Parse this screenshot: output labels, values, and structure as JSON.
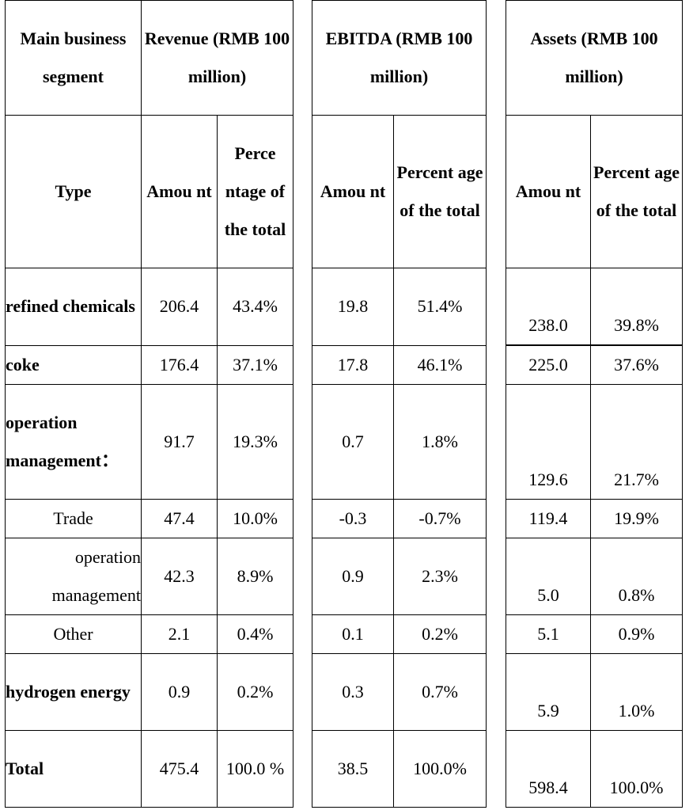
{
  "header": {
    "segment": "Main business segment",
    "revenue": "Revenue (RMB 100 million)",
    "ebitda": "EBITDA (RMB 100 million)",
    "assets": "Assets (RMB 100 million)"
  },
  "subheader": {
    "type": "Type",
    "rev_amount": "Amou nt",
    "rev_pct": "Perce ntage of the total",
    "eb_amount": "Amou nt",
    "eb_pct": "Percent age of the total",
    "as_amount": "Amou nt",
    "as_pct": "Percent age of the total"
  },
  "rows": [
    {
      "type": "refined chemicals",
      "rev_amount": "206.4",
      "rev_pct": "43.4%",
      "eb_amount": "19.8",
      "eb_pct": "51.4%",
      "as_amount": "238.0",
      "as_pct": "39.8%"
    },
    {
      "type": "coke",
      "rev_amount": "176.4",
      "rev_pct": "37.1%",
      "eb_amount": "17.8",
      "eb_pct": "46.1%",
      "as_amount": "225.0",
      "as_pct": "37.6%"
    },
    {
      "type": "operation management：",
      "rev_amount": "91.7",
      "rev_pct": "19.3%",
      "eb_amount": "0.7",
      "eb_pct": "1.8%",
      "as_amount": "129.6",
      "as_pct": "21.7%"
    },
    {
      "type": "Trade",
      "rev_amount": "47.4",
      "rev_pct": "10.0%",
      "eb_amount": "-0.3",
      "eb_pct": "-0.7%",
      "as_amount": "119.4",
      "as_pct": "19.9%"
    },
    {
      "type": "operation management",
      "rev_amount": "42.3",
      "rev_pct": "8.9%",
      "eb_amount": "0.9",
      "eb_pct": "2.3%",
      "as_amount": "5.0",
      "as_pct": "0.8%"
    },
    {
      "type": "Other",
      "rev_amount": "2.1",
      "rev_pct": "0.4%",
      "eb_amount": "0.1",
      "eb_pct": "0.2%",
      "as_amount": "5.1",
      "as_pct": "0.9%"
    },
    {
      "type": "hydrogen energy",
      "rev_amount": "0.9",
      "rev_pct": "0.2%",
      "eb_amount": "0.3",
      "eb_pct": "0.7%",
      "as_amount": "5.9",
      "as_pct": "1.0%"
    },
    {
      "type": "Total",
      "rev_amount": "475.4",
      "rev_pct": "100.0 %",
      "eb_amount": "38.5",
      "eb_pct": "100.0%",
      "as_amount": "598.4",
      "as_pct": "100.0%"
    }
  ]
}
